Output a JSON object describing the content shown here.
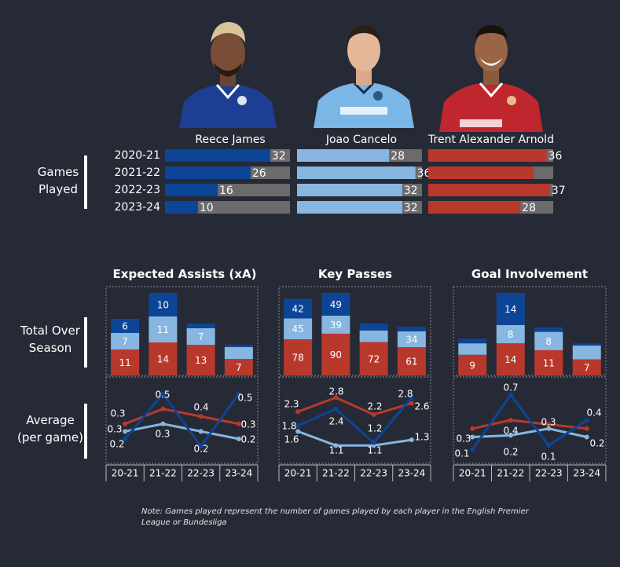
{
  "colors": {
    "background": "#262a36",
    "reece": "#0d4596",
    "cancelo": "#87b6e0",
    "trent": "#b8392c",
    "grey": "#6b6b6b"
  },
  "players": [
    {
      "name": "Reece James",
      "color": "#0d4596",
      "photo_icon": "player-photo-reece-james",
      "shirt": "#1a3f8f"
    },
    {
      "name": "Joao Cancelo",
      "color": "#87b6e0",
      "photo_icon": "player-photo-joao-cancelo",
      "shirt": "#7db8e8"
    },
    {
      "name": "Trent Alexander Arnold",
      "color": "#b8392c",
      "photo_icon": "player-photo-trent-alexander-arnold",
      "shirt": "#c0262d"
    }
  ],
  "seasons_long": [
    "2020-21",
    "2021-22",
    "2022-23",
    "2023-24"
  ],
  "seasons_short": [
    "20-21",
    "21-22",
    "22-23",
    "23-24"
  ],
  "side_labels": {
    "games": [
      "Games",
      "Played"
    ],
    "total": [
      "Total Over",
      "Season"
    ],
    "average": [
      "Average",
      "(per game)"
    ]
  },
  "metric_titles": [
    "Expected Assists (xA)",
    "Key Passes",
    "Goal Involvement"
  ],
  "note": [
    "Note: Games played represent the number of games played by each player in the English Premier",
    "League or Bundesliga"
  ],
  "chart_data": [
    {
      "type": "bar",
      "title": "Games Played",
      "categories": [
        "2020-21",
        "2021-22",
        "2022-23",
        "2023-24"
      ],
      "series": [
        {
          "name": "Reece James",
          "values": [
            32,
            26,
            16,
            10
          ]
        },
        {
          "name": "Joao Cancelo",
          "values": [
            28,
            36,
            32,
            32
          ]
        },
        {
          "name": "Trent Alexander Arnold",
          "values": [
            36,
            32,
            37,
            28
          ]
        }
      ],
      "labels_shown": [
        [
          true,
          true,
          true,
          true
        ],
        [
          true,
          true,
          true,
          true
        ],
        [
          true,
          false,
          true,
          true
        ]
      ],
      "xlim": [
        0,
        38
      ]
    },
    {
      "type": "bar",
      "title": "Expected Assists (xA)",
      "subtitle": "Total Over Season",
      "categories": [
        "20-21",
        "21-22",
        "22-23",
        "23-24"
      ],
      "series": [
        {
          "name": "Trent Alexander Arnold",
          "values": [
            11,
            14,
            13,
            7
          ]
        },
        {
          "name": "Joao Cancelo",
          "values": [
            7,
            11,
            7,
            5
          ]
        },
        {
          "name": "Reece James",
          "values": [
            6,
            10,
            2,
            1
          ]
        }
      ],
      "labels_shown": [
        [
          true,
          true,
          true,
          true
        ],
        [
          true,
          true,
          true,
          false
        ],
        [
          true,
          true,
          false,
          false
        ]
      ]
    },
    {
      "type": "line",
      "title": "Expected Assists (xA)",
      "subtitle": "Average (per game)",
      "categories": [
        "20-21",
        "21-22",
        "22-23",
        "23-24"
      ],
      "series": [
        {
          "name": "Trent Alexander Arnold",
          "values": [
            0.3,
            0.4,
            0.35,
            0.3
          ]
        },
        {
          "name": "Joao Cancelo",
          "values": [
            0.25,
            0.3,
            0.25,
            0.2
          ]
        },
        {
          "name": "Reece James",
          "values": [
            0.2,
            0.5,
            0.15,
            0.5
          ]
        }
      ],
      "point_labels": [
        {
          "text": "0.3",
          "fill": "#ffffff"
        },
        {
          "text": "0.3",
          "fill": "#ffffff"
        },
        {
          "text": "0.5",
          "fill": "#ffffff"
        },
        {
          "text": "0.3",
          "fill": "#ffffff"
        },
        {
          "text": "0.4",
          "fill": "#ffffff"
        },
        {
          "text": "0.2",
          "fill": "#ffffff"
        },
        {
          "text": "0.5",
          "fill": "#ffffff"
        },
        {
          "text": "0.3",
          "fill": "#ffffff"
        },
        {
          "text": "0.2",
          "fill": "#ffffff"
        },
        {
          "text": "0.2",
          "fill": "#ffffff"
        }
      ],
      "ylim": [
        0.1,
        0.55
      ]
    },
    {
      "type": "bar",
      "title": "Key Passes",
      "subtitle": "Total Over Season",
      "categories": [
        "20-21",
        "21-22",
        "22-23",
        "23-24"
      ],
      "series": [
        {
          "name": "Trent Alexander Arnold",
          "values": [
            78,
            90,
            72,
            61
          ]
        },
        {
          "name": "Joao Cancelo",
          "values": [
            45,
            39,
            25,
            34
          ]
        },
        {
          "name": "Reece James",
          "values": [
            42,
            49,
            15,
            10
          ]
        }
      ],
      "labels_shown": [
        [
          true,
          true,
          true,
          true
        ],
        [
          true,
          true,
          false,
          true
        ],
        [
          true,
          true,
          false,
          false
        ]
      ]
    },
    {
      "type": "line",
      "title": "Key Passes",
      "subtitle": "Average (per game)",
      "categories": [
        "20-21",
        "21-22",
        "22-23",
        "23-24"
      ],
      "series": [
        {
          "name": "Trent Alexander Arnold",
          "values": [
            2.3,
            2.8,
            2.2,
            2.6
          ]
        },
        {
          "name": "Joao Cancelo",
          "values": [
            1.6,
            1.1,
            1.1,
            1.3
          ]
        },
        {
          "name": "Reece James",
          "values": [
            1.8,
            2.4,
            1.2,
            2.8
          ]
        }
      ],
      "point_labels": [
        {
          "text": "2.3"
        },
        {
          "text": "1.8"
        },
        {
          "text": "1.6"
        },
        {
          "text": "2.8"
        },
        {
          "text": "2.4"
        },
        {
          "text": "1.1"
        },
        {
          "text": "2.2"
        },
        {
          "text": "1.2"
        },
        {
          "text": "1.1"
        },
        {
          "text": "2.8"
        },
        {
          "text": "2.6"
        },
        {
          "text": "1.3"
        }
      ],
      "ylim": [
        0.8,
        3.2
      ]
    },
    {
      "type": "bar",
      "title": "Goal Involvement",
      "subtitle": "Total Over Season",
      "categories": [
        "20-21",
        "21-22",
        "22-23",
        "23-24"
      ],
      "series": [
        {
          "name": "Trent Alexander Arnold",
          "values": [
            9,
            14,
            11,
            7
          ]
        },
        {
          "name": "Joao Cancelo",
          "values": [
            5,
            8,
            8,
            6
          ]
        },
        {
          "name": "Reece James",
          "values": [
            2,
            14,
            2,
            1
          ]
        }
      ],
      "labels_shown": [
        [
          true,
          true,
          true,
          true
        ],
        [
          false,
          true,
          true,
          false
        ],
        [
          false,
          true,
          false,
          false
        ]
      ]
    },
    {
      "type": "line",
      "title": "Goal Involvement",
      "subtitle": "Average (per game)",
      "categories": [
        "20-21",
        "21-22",
        "22-23",
        "23-24"
      ],
      "series": [
        {
          "name": "Trent Alexander Arnold",
          "values": [
            0.3,
            0.4,
            0.35,
            0.3
          ]
        },
        {
          "name": "Joao Cancelo",
          "values": [
            0.2,
            0.22,
            0.3,
            0.2
          ]
        },
        {
          "name": "Reece James",
          "values": [
            0.05,
            0.7,
            0.1,
            0.4
          ]
        }
      ],
      "point_labels": [
        {
          "text": "0.3"
        },
        {
          "text": "0.1"
        },
        {
          "text": "0.7"
        },
        {
          "text": "0.4"
        },
        {
          "text": "0.2"
        },
        {
          "text": "0.3"
        },
        {
          "text": "0.1"
        },
        {
          "text": "0.4"
        },
        {
          "text": "0.2"
        }
      ],
      "ylim": [
        0.0,
        0.8
      ]
    }
  ]
}
